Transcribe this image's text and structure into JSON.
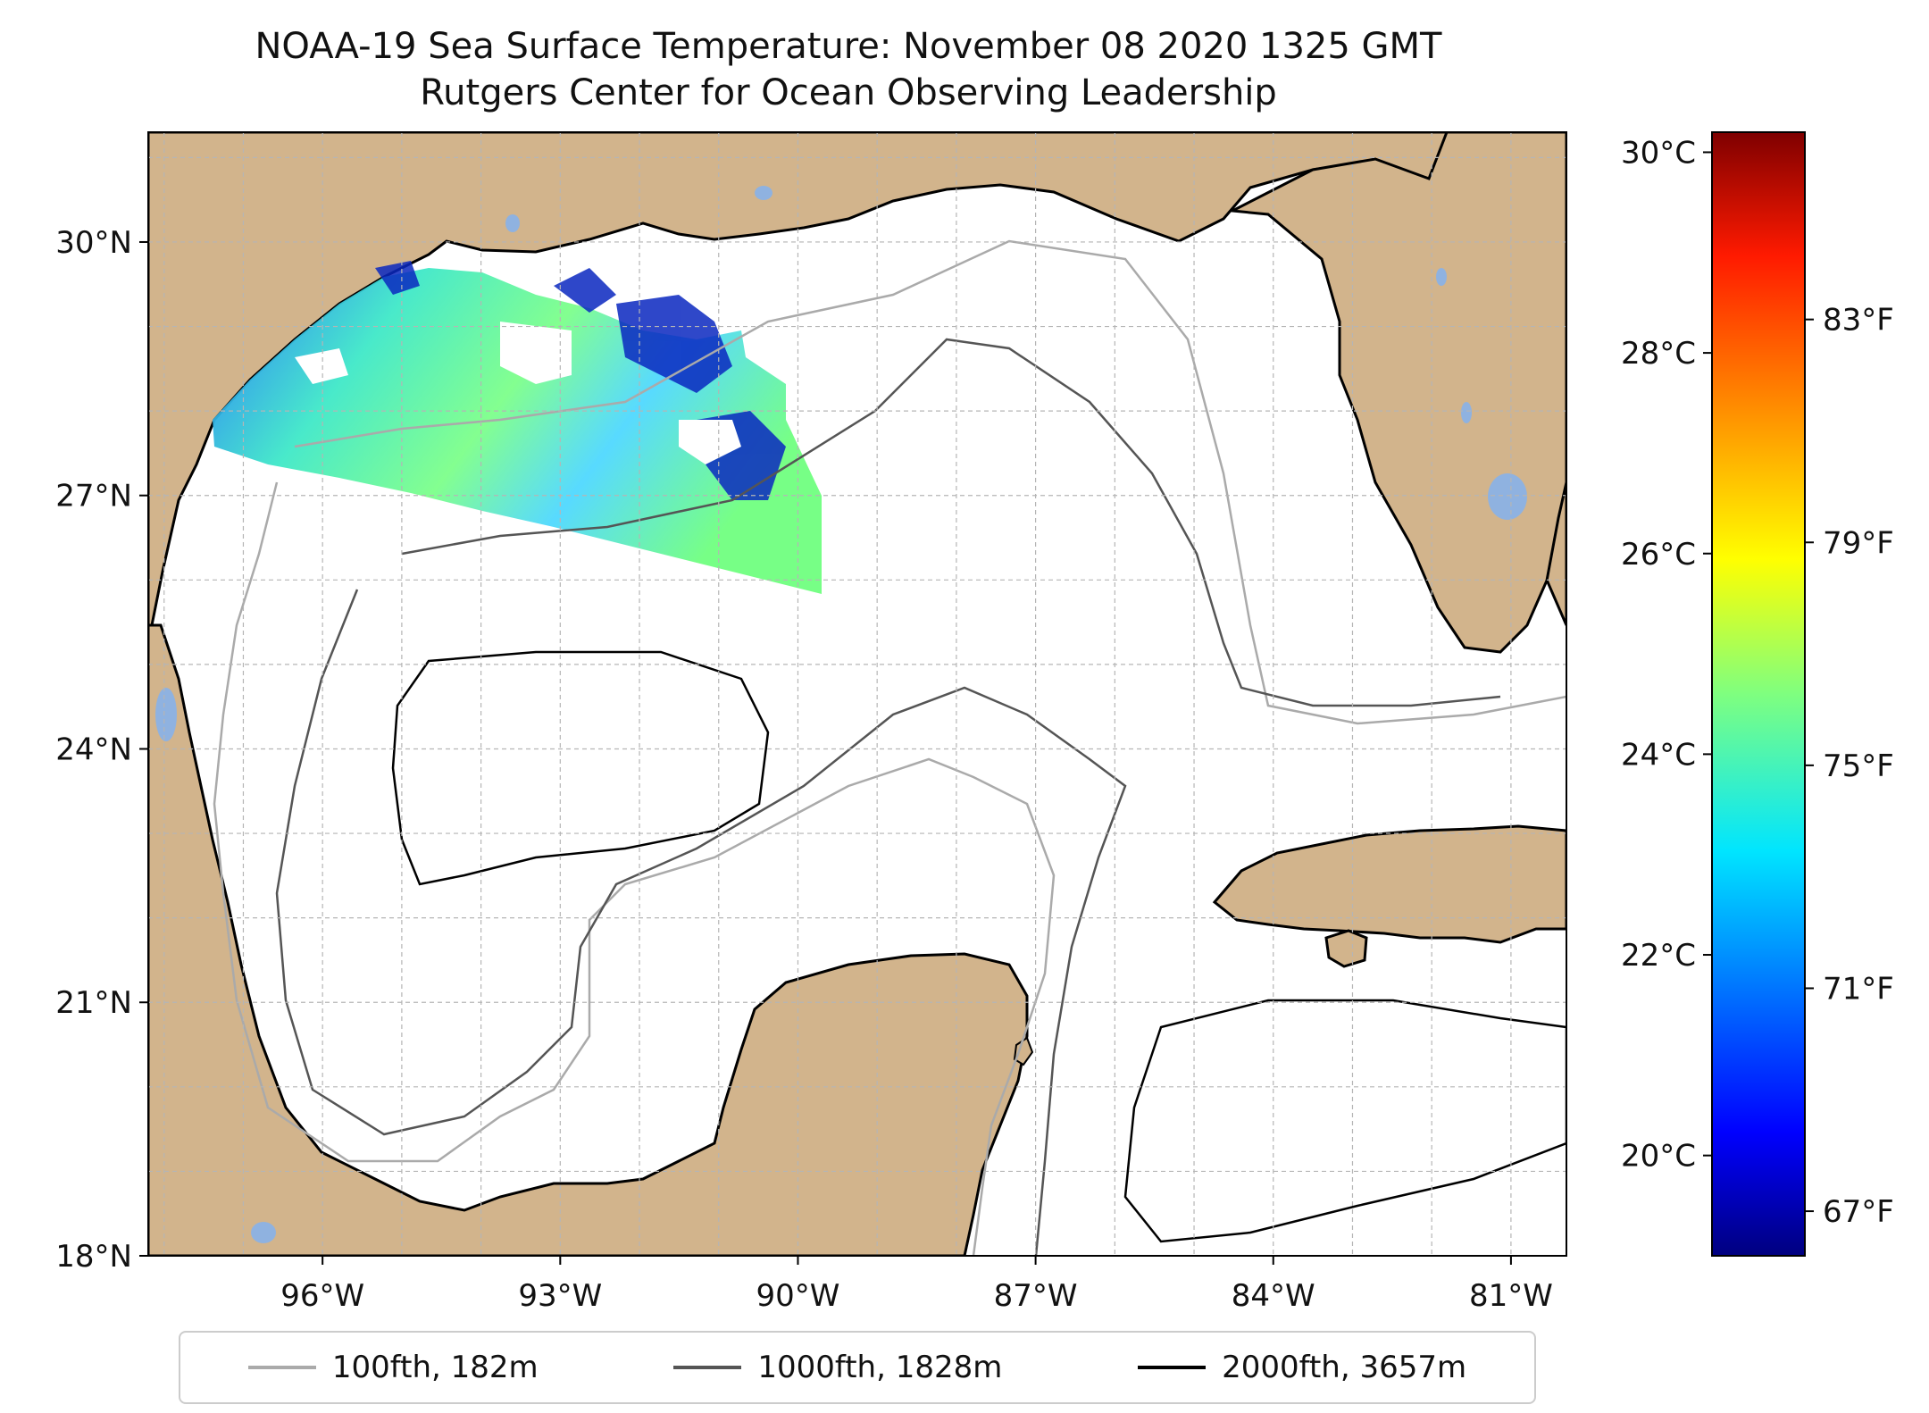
{
  "title": "NOAA-19 Sea Surface Temperature: November 08 2020 1325 GMT",
  "subtitle": "Rutgers Center for Ocean Observing Leadership",
  "map": {
    "lat_range": [
      18,
      31.3
    ],
    "lon_range": [
      -98.2,
      -80.3
    ],
    "lat_ticks": [
      "30°N",
      "27°N",
      "24°N",
      "21°N",
      "18°N"
    ],
    "lon_ticks": [
      "96°W",
      "93°W",
      "90°W",
      "87°W",
      "84°W",
      "81°W"
    ],
    "land_color": "#d2b48c",
    "lake_color": "#8fb2e0",
    "ocean_color": "#ffffff",
    "grid": true
  },
  "colorbar": {
    "colormap": "jet",
    "range_c": [
      19,
      30.2
    ],
    "celsius_ticks": [
      "30°C",
      "28°C",
      "26°C",
      "24°C",
      "22°C",
      "20°C"
    ],
    "fahrenheit_ticks": [
      "83°F",
      "79°F",
      "75°F",
      "71°F",
      "67°F"
    ]
  },
  "legend": [
    {
      "label": "100fth, 182m",
      "color": "#aaaaaa"
    },
    {
      "label": "1000fth, 1828m",
      "color": "#555555"
    },
    {
      "label": "2000fth, 3657m",
      "color": "#000000"
    }
  ]
}
